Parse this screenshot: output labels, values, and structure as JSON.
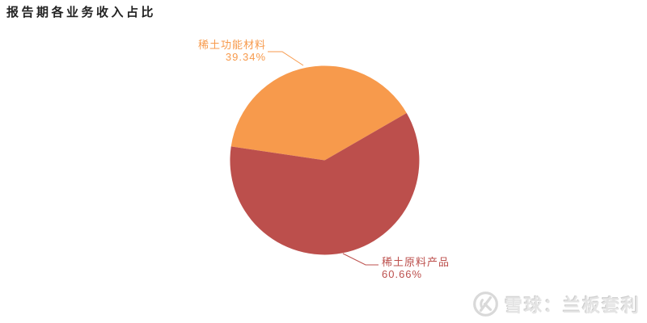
{
  "chart_data": {
    "type": "pie",
    "title": "报告期各业务收入占比",
    "series": [
      {
        "name": "稀土功能材料",
        "value": 39.34,
        "label": "39.34%",
        "color": "#F79A4C"
      },
      {
        "name": "稀土原料产品",
        "value": 60.66,
        "label": "60.66%",
        "color": "#BC4F4C"
      }
    ],
    "start_angle": 171.62,
    "direction": "clockwise",
    "legend": "none",
    "labels": "outside-with-leader-lines",
    "background": "#ffffff"
  },
  "watermark": {
    "logo": "xueqiu-logo",
    "text": "雪球：兰板套利"
  }
}
